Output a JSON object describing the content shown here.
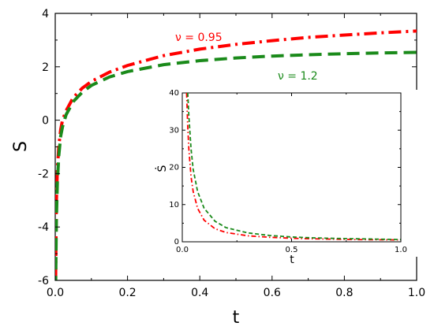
{
  "chart_data": [
    {
      "type": "line",
      "title": "",
      "xlabel": "t",
      "ylabel": "S",
      "xlim": [
        0,
        1.0
      ],
      "ylim": [
        -6,
        4
      ],
      "x_tick_labels": [
        "0.0",
        "0.2",
        "0.4",
        "0.6",
        "0.8",
        "1.0"
      ],
      "x_ticks": [
        0,
        0.2,
        0.4,
        0.6,
        0.8,
        1.0
      ],
      "y_tick_labels": [
        "-6",
        "-4",
        "-2",
        "0",
        "2",
        "4"
      ],
      "y_ticks": [
        -6,
        -4,
        -2,
        0,
        2,
        4
      ],
      "grid": false,
      "series": [
        {
          "name": "ν = 0.95",
          "color": "#ff0000",
          "style": "dash-dot",
          "x": [
            0.001,
            0.003,
            0.006,
            0.01,
            0.015,
            0.02,
            0.03,
            0.05,
            0.075,
            0.1,
            0.15,
            0.2,
            0.3,
            0.4,
            0.5,
            0.6,
            0.7,
            0.8,
            0.9,
            1.0
          ],
          "y": [
            -6.0,
            -3.1,
            -1.85,
            -0.95,
            -0.35,
            0.0,
            0.35,
            0.85,
            1.2,
            1.45,
            1.8,
            2.05,
            2.42,
            2.66,
            2.84,
            2.98,
            3.1,
            3.19,
            3.27,
            3.34
          ]
        },
        {
          "name": "ν = 1.2",
          "color": "#1a8a1a",
          "style": "dashed",
          "x": [
            0.001,
            0.003,
            0.006,
            0.01,
            0.015,
            0.02,
            0.03,
            0.05,
            0.075,
            0.1,
            0.15,
            0.2,
            0.3,
            0.4,
            0.5,
            0.6,
            0.7,
            0.8,
            0.9,
            1.0
          ],
          "y": [
            -6.3,
            -3.8,
            -2.3,
            -1.3,
            -0.6,
            -0.25,
            0.2,
            0.7,
            1.05,
            1.3,
            1.62,
            1.82,
            2.08,
            2.23,
            2.33,
            2.4,
            2.45,
            2.49,
            2.52,
            2.54
          ]
        }
      ]
    },
    {
      "type": "line",
      "title": "",
      "xlabel": "t",
      "ylabel": "Ṡ",
      "xlim": [
        0,
        1.0
      ],
      "ylim": [
        0,
        40
      ],
      "x_tick_labels": [
        "0.0",
        "0.5",
        "1.0"
      ],
      "x_ticks": [
        0,
        0.5,
        1.0
      ],
      "y_tick_labels": [
        "0",
        "10",
        "20",
        "30",
        "40"
      ],
      "y_ticks": [
        0,
        10,
        20,
        30,
        40
      ],
      "grid": false,
      "series": [
        {
          "color": "#ff0000",
          "style": "dash-dot",
          "x": [
            0.02,
            0.025,
            0.03,
            0.04,
            0.05,
            0.07,
            0.1,
            0.15,
            0.2,
            0.3,
            0.4,
            0.5,
            0.6,
            0.7,
            0.8,
            0.9,
            1.0
          ],
          "y": [
            40,
            31,
            25,
            17.5,
            13.5,
            9.0,
            5.8,
            3.5,
            2.5,
            1.6,
            1.2,
            0.95,
            0.8,
            0.7,
            0.6,
            0.55,
            0.5
          ]
        },
        {
          "color": "#1a8a1a",
          "style": "dashed",
          "x": [
            0.025,
            0.03,
            0.04,
            0.05,
            0.07,
            0.1,
            0.15,
            0.2,
            0.3,
            0.4,
            0.5,
            0.6,
            0.7,
            0.8,
            0.9,
            1.0
          ],
          "y": [
            40,
            34,
            25,
            19.5,
            13.5,
            9.0,
            5.5,
            3.8,
            2.4,
            1.7,
            1.3,
            1.05,
            0.9,
            0.8,
            0.7,
            0.6
          ]
        }
      ]
    }
  ],
  "annotations": {
    "nu_095": "ν = 0.95",
    "nu_12": "ν = 1.2"
  }
}
